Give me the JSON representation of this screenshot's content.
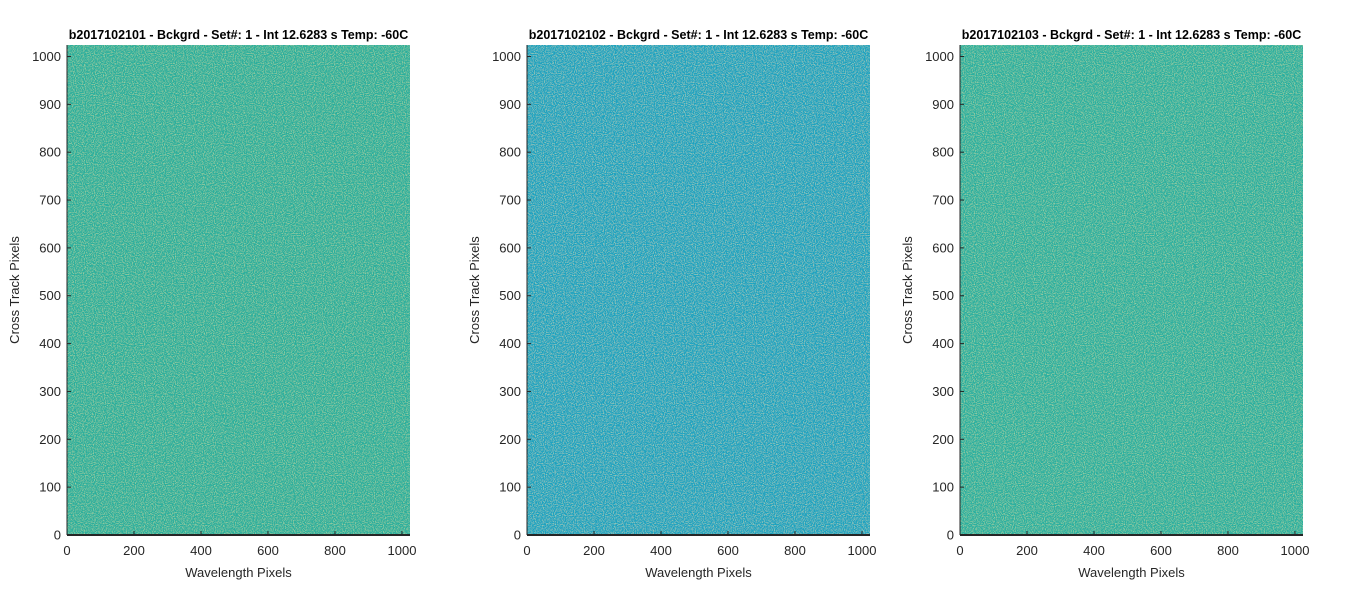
{
  "colors": {
    "panel_a": "#2aaf9d",
    "panel_b": "#1aa3c0",
    "panel_c": "#2bb0a0",
    "axis": "#262626"
  },
  "chart_data": [
    {
      "type": "heatmap",
      "title": "b2017102101 - Bckgrd - Set#: 1 - Int 12.6283 s Temp: -60C",
      "xlabel": "Wavelength Pixels",
      "ylabel": "Cross Track Pixels",
      "xlim": [
        0,
        1024
      ],
      "ylim": [
        0,
        1024
      ],
      "xticks": [
        0,
        200,
        400,
        600,
        800,
        1000
      ],
      "yticks": [
        0,
        100,
        200,
        300,
        400,
        500,
        600,
        700,
        800,
        900,
        1000
      ],
      "fill_color": "#2aaf9d",
      "grid": false
    },
    {
      "type": "heatmap",
      "title": "b2017102102 - Bckgrd - Set#: 1 - Int 12.6283 s Temp: -60C",
      "xlabel": "Wavelength Pixels",
      "ylabel": "Cross Track Pixels",
      "xlim": [
        0,
        1024
      ],
      "ylim": [
        0,
        1024
      ],
      "xticks": [
        0,
        200,
        400,
        600,
        800,
        1000
      ],
      "yticks": [
        0,
        100,
        200,
        300,
        400,
        500,
        600,
        700,
        800,
        900,
        1000
      ],
      "fill_color": "#1aa3c0",
      "grid": false
    },
    {
      "type": "heatmap",
      "title": "b2017102103 - Bckgrd - Set#: 1 - Int 12.6283 s Temp: -60C",
      "xlabel": "Wavelength Pixels",
      "ylabel": "Cross Track Pixels",
      "xlim": [
        0,
        1024
      ],
      "ylim": [
        0,
        1024
      ],
      "xticks": [
        0,
        200,
        400,
        600,
        800,
        1000
      ],
      "yticks": [
        0,
        100,
        200,
        300,
        400,
        500,
        600,
        700,
        800,
        900,
        1000
      ],
      "fill_color": "#2bb0a0",
      "grid": false
    }
  ]
}
